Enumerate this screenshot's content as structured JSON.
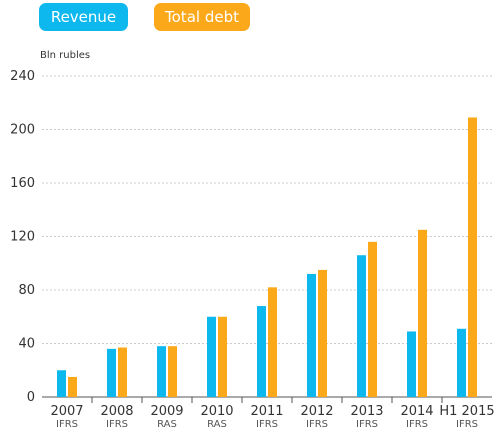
{
  "colors": {
    "revenue": "#0db8ef",
    "total_debt": "#fba81a",
    "grid": "#cccccc",
    "axis": "#555555"
  },
  "chart_data": {
    "type": "bar",
    "categories": [
      "2007",
      "2008",
      "2009",
      "2010",
      "2011",
      "2012",
      "2013",
      "2014",
      "H1 2015"
    ],
    "category_sublabels": [
      "IFRS",
      "IFRS",
      "RAS",
      "RAS",
      "IFRS",
      "IFRS",
      "IFRS",
      "IFRS",
      "IFRS"
    ],
    "series": [
      {
        "name": "Revenue",
        "values": [
          20,
          36,
          38,
          60,
          68,
          92,
          106,
          49,
          51
        ]
      },
      {
        "name": "Total debt",
        "values": [
          15,
          37,
          38,
          60,
          82,
          95,
          116,
          125,
          209
        ]
      }
    ],
    "ylabel": "Bln rubles",
    "ylim": [
      0,
      240
    ],
    "yticks": [
      0,
      40,
      80,
      120,
      160,
      200,
      240
    ],
    "grid": true,
    "legend_position": "top-left"
  }
}
